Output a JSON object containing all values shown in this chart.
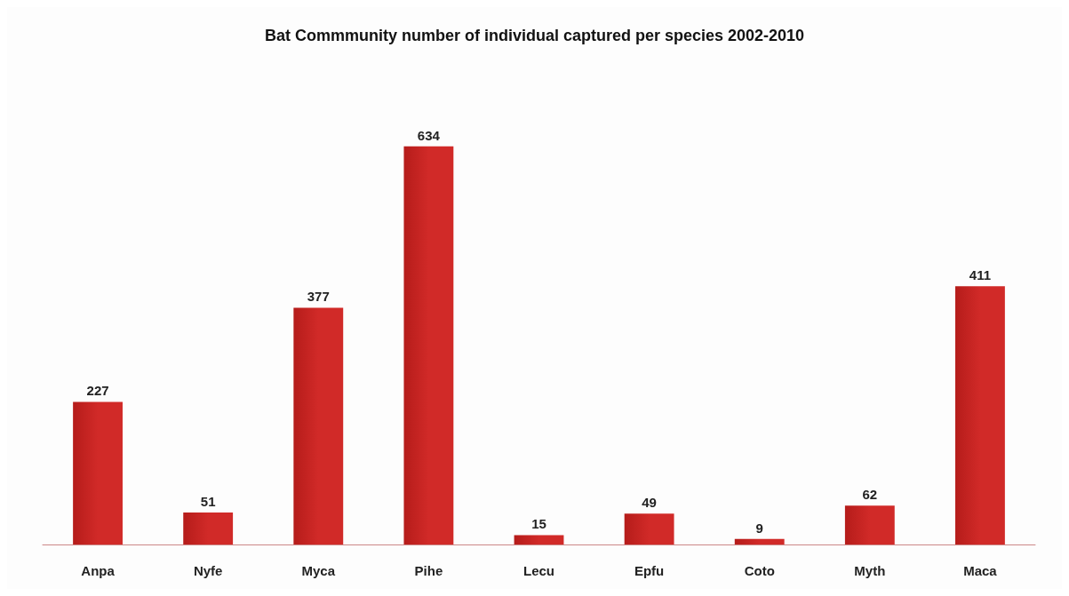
{
  "chart_data": {
    "type": "bar",
    "title": "Bat Commmunity number of individual captured per species 2002-2010",
    "categories": [
      "Anpa",
      "Nyfe",
      "Myca",
      "Pihe",
      "Lecu",
      "Epfu",
      "Coto",
      "Myth",
      "Maca"
    ],
    "values": [
      227,
      51,
      377,
      634,
      15,
      49,
      9,
      62,
      411
    ],
    "color": "#d12a28",
    "data_labels": true,
    "tick_labels": "x"
  }
}
